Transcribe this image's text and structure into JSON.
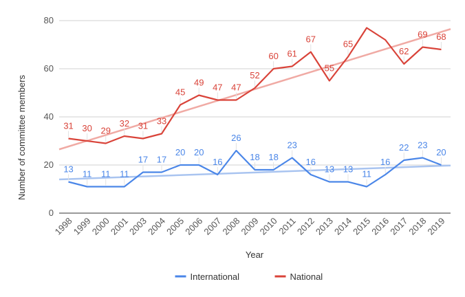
{
  "chart_data": {
    "type": "line",
    "title": "",
    "xlabel": "Year",
    "ylabel": "Number of committee members",
    "ylim": [
      0,
      80
    ],
    "yticks": [
      0,
      20,
      40,
      60,
      80
    ],
    "grid": true,
    "legend_position": "bottom",
    "categories": [
      "1998",
      "1999",
      "2000",
      "2001",
      "2003",
      "2004",
      "2005",
      "2006",
      "2007",
      "2008",
      "2009",
      "2010",
      "2011",
      "2012",
      "2013",
      "2014",
      "2015",
      "2016",
      "2017",
      "2018",
      "2019"
    ],
    "series": [
      {
        "name": "International",
        "color": "#4a86e8",
        "trend_color": "#a9c4f0",
        "values": [
          13,
          11,
          11,
          11,
          17,
          17,
          20,
          20,
          16,
          26,
          18,
          18,
          23,
          16,
          13,
          13,
          11,
          16,
          22,
          23,
          20
        ],
        "trendline": [
          14.0,
          19.8
        ]
      },
      {
        "name": "National",
        "color": "#d94339",
        "trend_color": "#f0aaa4",
        "values": [
          31,
          30,
          29,
          32,
          31,
          33,
          45,
          49,
          47,
          47,
          52,
          60,
          61,
          67,
          55,
          65,
          77,
          72,
          62,
          69,
          68
        ],
        "labels": [
          "31",
          "30",
          "29",
          "32",
          "31",
          "33",
          "45",
          "49",
          "47",
          "47",
          "52",
          "60",
          "61",
          "67",
          "55",
          "65",
          "",
          "",
          "62",
          "69",
          "68"
        ],
        "trendline": [
          26.5,
          76.5
        ]
      }
    ]
  }
}
